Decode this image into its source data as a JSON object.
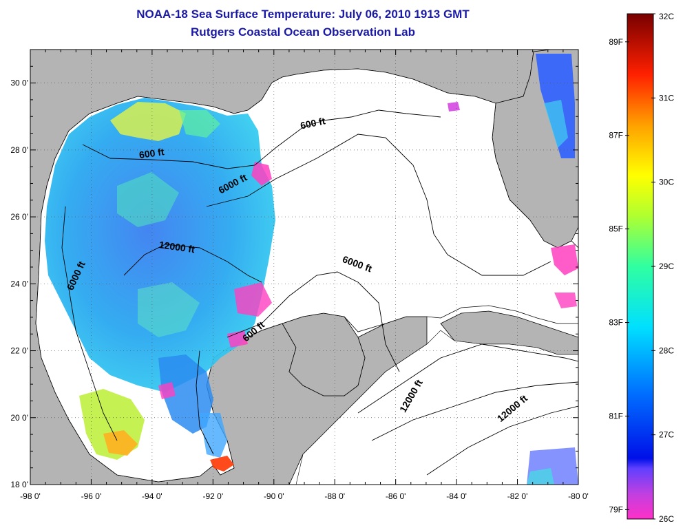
{
  "title": {
    "line1": "NOAA-18 Sea Surface Temperature:  July 06, 2010 1913 GMT",
    "line2": "Rutgers Coastal Ocean Observation Lab"
  },
  "colors": {
    "title": "#1a1aa6",
    "land": "#b4b4b4",
    "water": "#ffffff"
  },
  "map": {
    "lon_range": [
      -98,
      -80
    ],
    "lat_range": [
      18,
      31
    ],
    "x_tick_labels": [
      "-98 0'",
      "-96 0'",
      "-94 0'",
      "-92 0'",
      "-90 0'",
      "-88 0'",
      "-86 0'",
      "-84 0'",
      "-82 0'",
      "-80 0'"
    ],
    "y_tick_labels": [
      "18 0'",
      "20 0'",
      "22 0'",
      "24 0'",
      "26 0'",
      "28 0'",
      "30 0'"
    ],
    "contour_labels": [
      {
        "text": "600 ft",
        "lon": -94.0,
        "lat": 27.8,
        "angle": -8
      },
      {
        "text": "600 ft",
        "lon": -88.7,
        "lat": 28.7,
        "angle": -12
      },
      {
        "text": "6000 ft",
        "lon": -91.3,
        "lat": 26.9,
        "angle": -28
      },
      {
        "text": "12000 ft",
        "lon": -93.2,
        "lat": 25.0,
        "angle": 8
      },
      {
        "text": "6000 ft",
        "lon": -87.3,
        "lat": 24.5,
        "angle": 20
      },
      {
        "text": "6000 ft",
        "lon": -96.4,
        "lat": 24.2,
        "angle": -65
      },
      {
        "text": "600 ft",
        "lon": -90.6,
        "lat": 22.5,
        "angle": -40
      },
      {
        "text": "12000 ft",
        "lon": -85.4,
        "lat": 20.6,
        "angle": -60
      },
      {
        "text": "12000 ft",
        "lon": -82.1,
        "lat": 20.2,
        "angle": -40
      }
    ]
  },
  "colorbar": {
    "celsius_labels": [
      "32C",
      "31C",
      "30C",
      "29C",
      "28C",
      "27C",
      "26C"
    ],
    "fahrenheit_labels": [
      "89F",
      "87F",
      "85F",
      "83F",
      "81F",
      "79F"
    ],
    "range_c": [
      26,
      32
    ]
  }
}
